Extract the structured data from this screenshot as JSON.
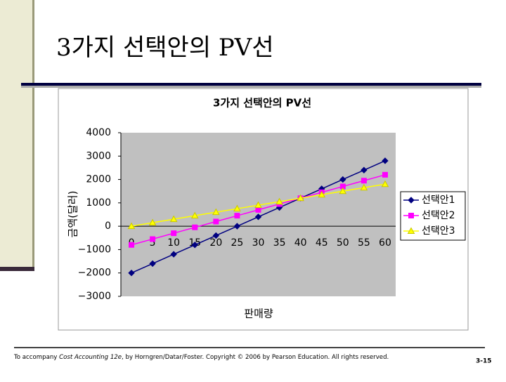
{
  "slide_title": "3가지 선택안의 PV선",
  "chart_data": {
    "type": "line",
    "title": "3가지 선택안의 PV선",
    "y_label": "금액(달러)",
    "x_label": "판매량",
    "categories": [
      "0",
      "5",
      "10",
      "15",
      "20",
      "25",
      "30",
      "35",
      "40",
      "45",
      "50",
      "55",
      "60"
    ],
    "series": [
      {
        "name": "선택안1",
        "color": "#000080",
        "marker": "diamond",
        "values": [
          -2000,
          -1600,
          -1200,
          -800,
          -400,
          0,
          400,
          800,
          1200,
          1600,
          2000,
          2400,
          2800
        ]
      },
      {
        "name": "선택안2",
        "color": "#ff00ff",
        "marker": "square",
        "values": [
          -800,
          -550,
          -300,
          -50,
          200,
          450,
          700,
          950,
          1200,
          1450,
          1700,
          1950,
          2200
        ]
      },
      {
        "name": "선택안3",
        "color": "#ffff00",
        "marker": "triangle",
        "values": [
          0,
          150,
          300,
          450,
          600,
          750,
          900,
          1050,
          1200,
          1350,
          1500,
          1650,
          1800
        ]
      }
    ],
    "ylim": [
      -3000,
      4000
    ],
    "yticks": [
      {
        "value": -3000,
        "label": "−3000"
      },
      {
        "value": -2000,
        "label": "−2000"
      },
      {
        "value": -1000,
        "label": "−1000"
      },
      0,
      1000,
      2000,
      3000,
      4000
    ],
    "grid": false,
    "legend": "right"
  },
  "footer": [
    "To accompany ",
    "Cost Accounting 12e",
    ", by Horngren/Datar/Foster. Copyright © 2006 by Pearson Education. All rights reserved."
  ],
  "page_number": "3-15"
}
